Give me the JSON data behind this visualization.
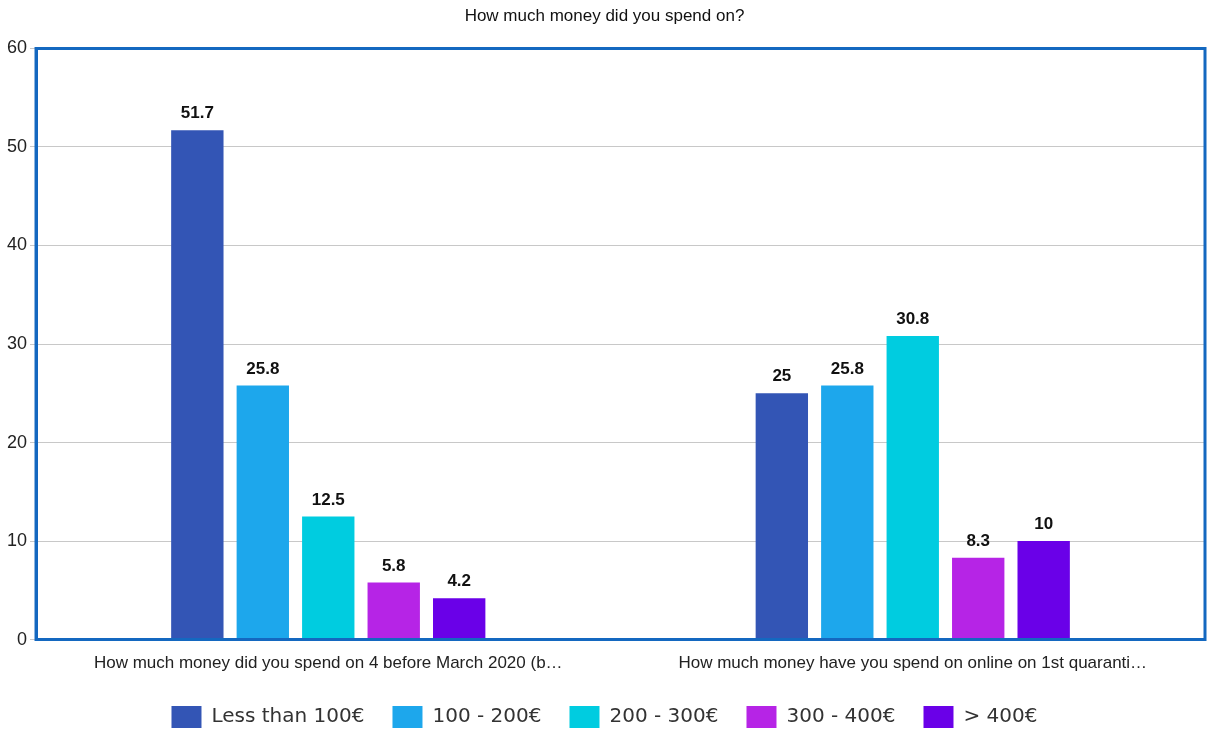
{
  "chart_data": {
    "type": "bar",
    "title": "How much money did you spend on?",
    "categories": [
      "How much money did you spend on 4 before March 2020 (b…",
      "How much money have you spend on online on 1st quaranti…"
    ],
    "series": [
      {
        "name": "Less than 100€",
        "color": "#3355b5",
        "values": [
          51.7,
          25
        ]
      },
      {
        "name": "100 - 200€",
        "color": "#1da7ec",
        "values": [
          25.8,
          25.8
        ]
      },
      {
        "name": "200 - 300€",
        "color": "#00cce0",
        "values": [
          12.5,
          30.8
        ]
      },
      {
        "name": "300 - 400€",
        "color": "#b624e6",
        "values": [
          5.8,
          8.3
        ]
      },
      {
        "name": "> 400€",
        "color": "#6a00e8",
        "values": [
          4.2,
          10
        ]
      }
    ],
    "ylim": [
      0,
      60
    ],
    "yticks": [
      0,
      10,
      20,
      30,
      40,
      50,
      60
    ],
    "grid": "y",
    "legend": "bottom",
    "data_labels": true
  }
}
